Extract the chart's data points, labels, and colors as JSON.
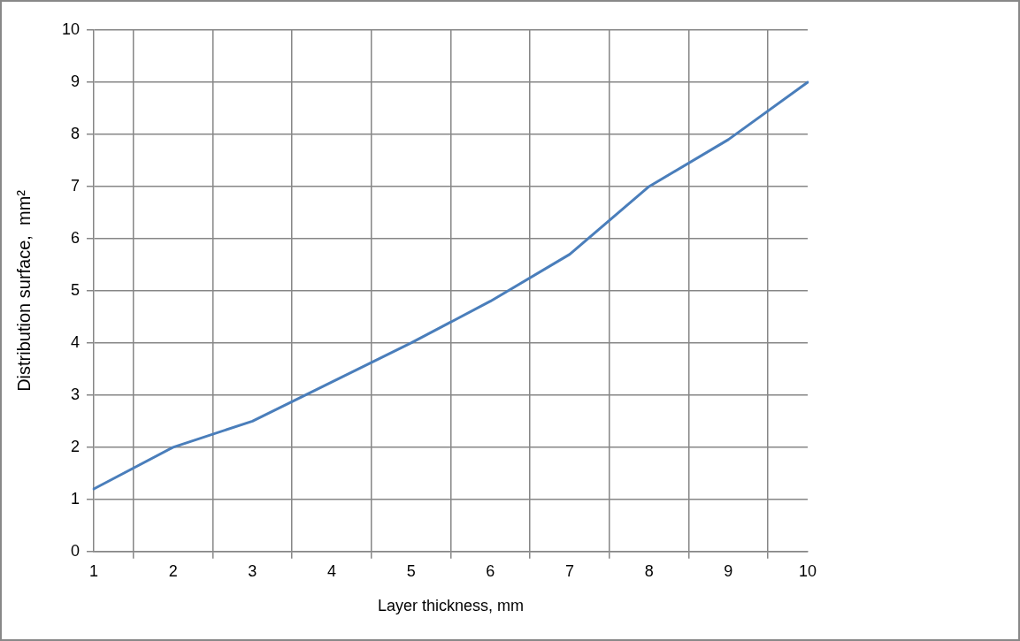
{
  "chart_data": {
    "type": "line",
    "xlabel": "Layer thickness, mm",
    "ylabel": "Distribution surface,  mm²",
    "categories": [
      "1",
      "2",
      "3",
      "4",
      "5",
      "6",
      "7",
      "8",
      "9",
      "10"
    ],
    "series": [
      {
        "color": "#4a7ebb",
        "values": [
          1.2,
          2.0,
          2.5,
          3.25,
          4.0,
          4.8,
          5.7,
          7.0,
          7.9,
          9.0
        ]
      }
    ],
    "ylim": [
      0,
      10
    ],
    "yticks": [
      0,
      1,
      2,
      3,
      4,
      5,
      6,
      7,
      8,
      9,
      10
    ],
    "grid": true,
    "legend": false,
    "marker": "none",
    "line_style": "solid"
  }
}
